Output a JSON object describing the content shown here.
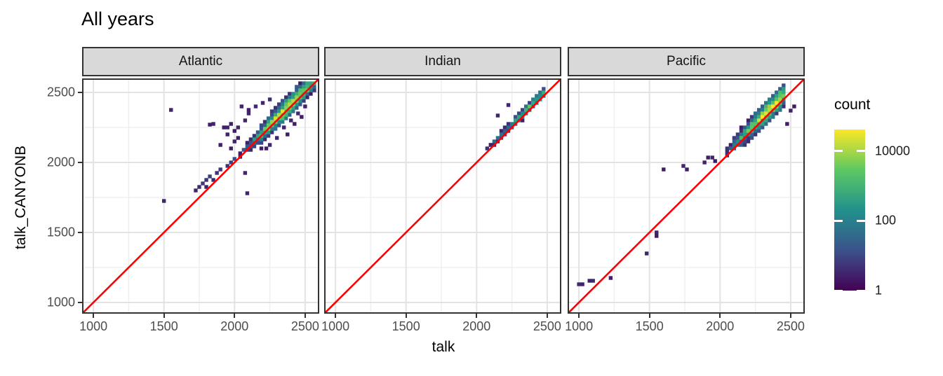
{
  "title": "All years",
  "x_axis": {
    "label": "talk",
    "ticks": [
      1000,
      1500,
      2000,
      2500
    ],
    "minor_ticks": [
      1250,
      1750,
      2250
    ],
    "domain": [
      920,
      2600
    ]
  },
  "y_axis": {
    "label": "talk_CANYONB",
    "ticks": [
      2500,
      2000,
      1500,
      1000
    ],
    "minor_ticks": [
      1250,
      1750,
      2250
    ],
    "domain": [
      920,
      2600
    ]
  },
  "legend": {
    "title": "count",
    "tick_labels": [
      "10000",
      "100",
      "1"
    ],
    "tick_values": [
      10000,
      100,
      1
    ],
    "log_top": 4.62,
    "viridis_stops": [
      "#440154",
      "#3b528b",
      "#21918c",
      "#5dc863",
      "#fde725"
    ]
  },
  "colors": {
    "background": "#ffffff",
    "strip_fill": "#d9d9d9",
    "panel_border": "#333333",
    "grid_major": "#e3e3e3",
    "grid_minor": "#f0f0f0",
    "tick_mark": "#333333",
    "tick_label": "#4d4d4d",
    "identity_line": "#ff0000"
  },
  "chart_data": [
    {
      "type": "bin2d-heatmap",
      "facet": "Atlantic",
      "xlabel": "talk",
      "ylabel": "talk_CANYONB",
      "x_range": [
        920,
        2600
      ],
      "y_range": [
        920,
        2600
      ],
      "bin_size": 25,
      "count_scale": "log10",
      "identity_line": true,
      "diagonal_band": {
        "t_start": 2040,
        "t_end": 2585,
        "center_offset": 15,
        "width_above": 100,
        "width_below": 50,
        "falloff_per_bin": 1.05,
        "peak_profile": [
          [
            2040,
            0.9
          ],
          [
            2150,
            2.6
          ],
          [
            2250,
            3.9
          ],
          [
            2330,
            4.5
          ],
          [
            2450,
            4.35
          ],
          [
            2520,
            3.7
          ],
          [
            2585,
            3.2
          ]
        ]
      },
      "scatter_bins": [
        [
          1550,
          2375,
          0.5
        ],
        [
          1500,
          1725,
          0.5
        ],
        [
          1725,
          1800,
          0.5
        ],
        [
          1750,
          1825,
          0.6
        ],
        [
          1775,
          1850,
          0.8
        ],
        [
          1800,
          1875,
          0.7
        ],
        [
          1825,
          1900,
          0.9
        ],
        [
          1875,
          1925,
          0.7
        ],
        [
          1900,
          1950,
          0.8
        ],
        [
          1950,
          1975,
          0.7
        ],
        [
          1975,
          2000,
          0.9
        ],
        [
          2000,
          2025,
          1.1
        ],
        [
          1800,
          1825,
          0.5
        ],
        [
          1850,
          1875,
          0.6
        ],
        [
          1825,
          2270,
          0.4
        ],
        [
          1850,
          2275,
          0.5
        ],
        [
          1925,
          2250,
          0.4
        ],
        [
          1950,
          2250,
          0.5
        ],
        [
          1975,
          2275,
          0.4
        ],
        [
          2025,
          2250,
          0.5
        ],
        [
          2050,
          2400,
          0.5
        ],
        [
          2100,
          2375,
          0.4
        ],
        [
          2100,
          2350,
          0.5
        ],
        [
          2150,
          2400,
          0.6
        ],
        [
          2075,
          2300,
          0.5
        ],
        [
          2000,
          2225,
          0.4
        ],
        [
          1950,
          2200,
          0.5
        ],
        [
          2025,
          2175,
          0.4
        ],
        [
          2000,
          2150,
          0.5
        ],
        [
          1975,
          2100,
          0.4
        ],
        [
          1900,
          2125,
          0.4
        ],
        [
          2075,
          1925,
          0.5
        ],
        [
          2090,
          1780,
          0.5
        ],
        [
          2250,
          2125,
          0.5
        ],
        [
          2225,
          2100,
          0.4
        ],
        [
          2300,
          2175,
          0.5
        ],
        [
          2190,
          2100,
          0.4
        ],
        [
          2350,
          2250,
          0.5
        ],
        [
          2400,
          2300,
          0.5
        ],
        [
          2450,
          2350,
          0.6
        ],
        [
          2425,
          2275,
          0.4
        ],
        [
          2475,
          2325,
          0.4
        ],
        [
          2500,
          2400,
          0.5
        ],
        [
          2375,
          2200,
          0.4
        ],
        [
          2200,
          2425,
          0.5
        ],
        [
          2250,
          2450,
          0.6
        ]
      ]
    },
    {
      "type": "bin2d-heatmap",
      "facet": "Indian",
      "xlabel": "talk",
      "ylabel": "talk_CANYONB",
      "x_range": [
        920,
        2600
      ],
      "y_range": [
        920,
        2600
      ],
      "bin_size": 25,
      "count_scale": "log10",
      "identity_line": true,
      "diagonal_band": {
        "t_start": 2075,
        "t_end": 2490,
        "center_offset": 20,
        "width_above": 50,
        "width_below": 25,
        "falloff_per_bin": 1.5,
        "peak_profile": [
          [
            2075,
            0.7
          ],
          [
            2150,
            1.6
          ],
          [
            2250,
            2.4
          ],
          [
            2330,
            3.0
          ],
          [
            2400,
            3.3
          ],
          [
            2450,
            3.0
          ],
          [
            2490,
            2.4
          ]
        ]
      },
      "scatter_bins": [
        [
          2150,
          2335,
          0.5
        ],
        [
          2225,
          2410,
          0.5
        ],
        [
          2100,
          2125,
          0.5
        ]
      ]
    },
    {
      "type": "bin2d-heatmap",
      "facet": "Pacific",
      "xlabel": "talk",
      "ylabel": "talk_CANYONB",
      "x_range": [
        920,
        2600
      ],
      "y_range": [
        920,
        2600
      ],
      "bin_size": 25,
      "count_scale": "log10",
      "identity_line": true,
      "diagonal_band": {
        "t_start": 2050,
        "t_end": 2465,
        "center_offset": 30,
        "width_above": 100,
        "width_below": 50,
        "falloff_per_bin": 0.95,
        "peak_profile": [
          [
            2050,
            1.3
          ],
          [
            2150,
            2.9
          ],
          [
            2250,
            3.9
          ],
          [
            2350,
            4.45
          ],
          [
            2430,
            4.3
          ],
          [
            2465,
            3.4
          ]
        ]
      },
      "scatter_bins": [
        [
          1000,
          1130,
          0.6
        ],
        [
          1025,
          1130,
          0.5
        ],
        [
          1075,
          1155,
          0.5
        ],
        [
          1100,
          1155,
          0.6
        ],
        [
          1225,
          1175,
          0.4
        ],
        [
          1480,
          1350,
          0.5
        ],
        [
          1550,
          1500,
          0.5
        ],
        [
          1550,
          1475,
          0.4
        ],
        [
          1600,
          1950,
          0.4
        ],
        [
          1740,
          1975,
          0.5
        ],
        [
          1765,
          1950,
          0.4
        ],
        [
          1890,
          2000,
          0.5
        ],
        [
          1915,
          2035,
          0.4
        ],
        [
          1945,
          2035,
          0.5
        ],
        [
          1965,
          2010,
          0.4
        ],
        [
          2500,
          2370,
          0.5
        ],
        [
          2525,
          2400,
          0.4
        ],
        [
          2475,
          2275,
          0.4
        ]
      ]
    }
  ]
}
